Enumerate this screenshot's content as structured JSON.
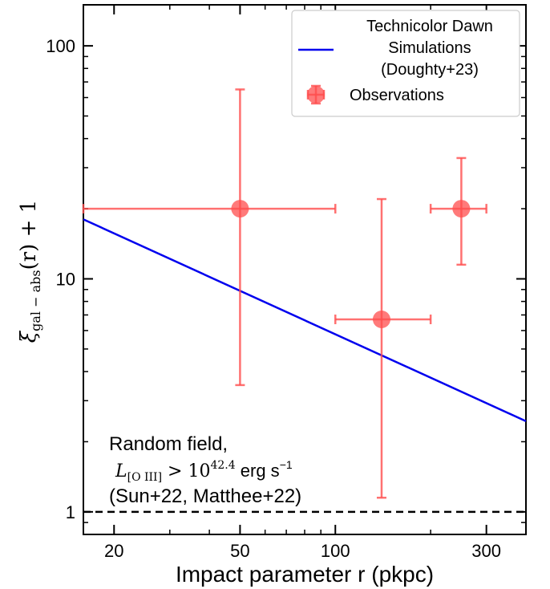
{
  "chart_data": {
    "type": "scatter",
    "xlabel": "Impact parameter r (pkpc)",
    "ylabel_latex": "ξ_{gal−abs}(r) + 1",
    "ylabel": {
      "xi": "ξ",
      "sub": "gal − abs",
      "suffix": "(r) + 1"
    },
    "xscale": "log",
    "yscale": "log",
    "xlim": [
      16,
      400
    ],
    "ylim": [
      0.8,
      150
    ],
    "grid": false,
    "legend_position": "top-right",
    "x_ticks": [
      {
        "value": 20,
        "label": "20"
      },
      {
        "value": 50,
        "label": "50"
      },
      {
        "value": 100,
        "label": "100"
      },
      {
        "value": 300,
        "label": "300"
      }
    ],
    "y_ticks": [
      {
        "value": 1,
        "label": "1"
      },
      {
        "value": 10,
        "label": "10"
      },
      {
        "value": 100,
        "label": "100"
      }
    ],
    "series": [
      {
        "name": "Technicolor Dawn Simulations (Doughty+23)",
        "legend_lines": [
          "Technicolor Dawn",
          "Simulations",
          "(Doughty+23)"
        ],
        "kind": "line",
        "color": "#0000ee",
        "x": [
          16,
          400
        ],
        "y": [
          18.0,
          2.45
        ]
      },
      {
        "name": "Observations",
        "kind": "errorbar",
        "color": "#ff4d4d",
        "points": [
          {
            "x": 50,
            "y": 20,
            "xerr": [
              16,
              100
            ],
            "yerr": [
              3.5,
              65
            ]
          },
          {
            "x": 140,
            "y": 6.7,
            "xerr": [
              100,
              200
            ],
            "yerr": [
              1.15,
              22
            ]
          },
          {
            "x": 250,
            "y": 20,
            "xerr": [
              200,
              300
            ],
            "yerr": [
              11.5,
              33
            ]
          }
        ]
      }
    ],
    "reference_line": {
      "y": 1,
      "style": "dashed",
      "color": "#000000"
    },
    "annotation": {
      "line1": "Random field,",
      "line2_math": "L[O III] > 10^42.4",
      "line2_l": "L",
      "line2_sub": "[O III]",
      "line2_gt": " > 10",
      "line2_exp": "42.4",
      "line2_units": " erg s",
      "line2_units_exp": "−1",
      "line3": "(Sun+22, Matthee+22)"
    }
  }
}
